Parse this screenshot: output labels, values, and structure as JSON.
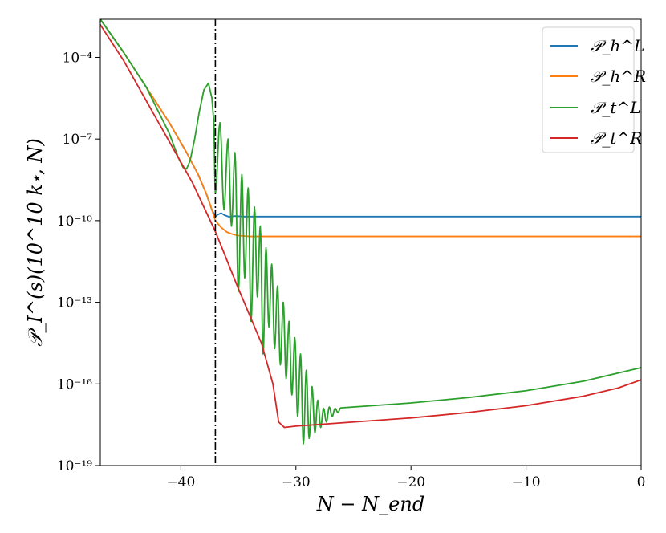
{
  "chart_data": {
    "type": "line",
    "xlabel": "N − N_end",
    "ylabel": "𝒫_I^(s)(10^10 k⋆, N)",
    "xlim": [
      -47,
      0
    ],
    "ylim_log10": [
      -19,
      -2.6
    ],
    "yscale": "log",
    "x_ticks": [
      -40,
      -30,
      -20,
      -10,
      0
    ],
    "x_tick_labels": [
      "−40",
      "−30",
      "−20",
      "−10",
      "0"
    ],
    "y_ticks_log10": [
      -4,
      -7,
      -10,
      -13,
      -16,
      -19
    ],
    "y_tick_labels": [
      "10⁻⁴",
      "10⁻⁷",
      "10⁻¹⁰",
      "10⁻¹³",
      "10⁻¹⁶",
      "10⁻¹⁹"
    ],
    "vline_x": -37,
    "legend_position": "top-right",
    "colors": {
      "PhL": "#1f77b4",
      "PhR": "#ff7f0e",
      "PtL": "#2ca02c",
      "PtR": "#d62728"
    },
    "series": [
      {
        "key": "PhL",
        "name": "𝒫_h^L",
        "x": [
          -47,
          -45,
          -43,
          -41,
          -39.5,
          -38.5,
          -37.8,
          -37.3,
          -37,
          -36.8,
          -36.5,
          -36.2,
          -35.8,
          -35.3,
          -34.5,
          -33,
          -30,
          -20,
          -10,
          0
        ],
        "log10y": [
          -2.6,
          -3.8,
          -5.1,
          -6.4,
          -7.5,
          -8.3,
          -9.0,
          -9.6,
          -9.85,
          -9.78,
          -9.72,
          -9.8,
          -9.86,
          -9.83,
          -9.85,
          -9.85,
          -9.85,
          -9.85,
          -9.85,
          -9.85
        ]
      },
      {
        "key": "PhR",
        "name": "𝒫_h^R",
        "x": [
          -47,
          -45,
          -43,
          -41,
          -39.5,
          -38.5,
          -37.8,
          -37.3,
          -37,
          -36.5,
          -36,
          -35.5,
          -35,
          -34,
          -32,
          -30,
          -20,
          -10,
          0
        ],
        "log10y": [
          -2.6,
          -3.8,
          -5.1,
          -6.4,
          -7.5,
          -8.3,
          -9.0,
          -9.6,
          -10.0,
          -10.25,
          -10.42,
          -10.5,
          -10.55,
          -10.58,
          -10.58,
          -10.58,
          -10.58,
          -10.58,
          -10.58
        ]
      },
      {
        "key": "PtL",
        "name": "𝒫_t^L",
        "x": [
          -47,
          -45,
          -43,
          -41,
          -40.2,
          -39.8,
          -39.5,
          -39.2,
          -38.8,
          -38.4,
          -38.0,
          -37.6,
          -37.3,
          -37.15
        ],
        "log10y": [
          -2.6,
          -3.8,
          -5.1,
          -6.8,
          -7.7,
          -8.05,
          -8.1,
          -7.8,
          -7.0,
          -6.0,
          -5.2,
          -4.95,
          -5.5,
          -6.3
        ],
        "oscillation": {
          "start_x": -37.15,
          "peaks": [
            [
              -36.6,
              -6.4
            ],
            [
              -35.9,
              -7.0
            ],
            [
              -35.3,
              -7.5
            ],
            [
              -34.7,
              -8.3
            ],
            [
              -34.15,
              -8.8
            ],
            [
              -33.6,
              -9.5
            ],
            [
              -33.1,
              -10.2
            ],
            [
              -32.6,
              -11.0
            ],
            [
              -32.1,
              -11.6
            ],
            [
              -31.6,
              -12.4
            ],
            [
              -31.1,
              -13.0
            ],
            [
              -30.6,
              -13.7
            ],
            [
              -30.1,
              -14.3
            ],
            [
              -29.6,
              -14.9
            ],
            [
              -29.1,
              -15.5
            ],
            [
              -28.6,
              -16.1
            ],
            [
              -28.1,
              -16.6
            ],
            [
              -27.6,
              -16.9
            ],
            [
              -27.1,
              -16.85
            ],
            [
              -26.6,
              -16.9
            ],
            [
              -26.1,
              -16.88
            ]
          ],
          "troughs": [
            [
              -37.0,
              -9.0
            ],
            [
              -36.25,
              -9.6
            ],
            [
              -35.6,
              -10.2
            ],
            [
              -35.0,
              -12.6
            ],
            [
              -34.45,
              -12.1
            ],
            [
              -33.9,
              -13.7
            ],
            [
              -33.35,
              -12.8
            ],
            [
              -32.85,
              -14.9
            ],
            [
              -32.35,
              -13.9
            ],
            [
              -31.85,
              -14.7
            ],
            [
              -31.35,
              -15.3
            ],
            [
              -30.85,
              -15.8
            ],
            [
              -30.35,
              -16.4
            ],
            [
              -29.85,
              -17.2
            ],
            [
              -29.35,
              -18.2
            ],
            [
              -28.85,
              -18.0
            ],
            [
              -28.35,
              -17.8
            ],
            [
              -27.85,
              -17.6
            ],
            [
              -27.35,
              -17.4
            ],
            [
              -26.85,
              -17.2
            ],
            [
              -26.35,
              -17.05
            ]
          ]
        },
        "tail_x": [
          -26.1,
          -20,
          -15,
          -10,
          -5,
          0
        ],
        "tail_log10y": [
          -16.88,
          -16.7,
          -16.5,
          -16.25,
          -15.9,
          -15.4
        ]
      },
      {
        "key": "PtR",
        "name": "𝒫_t^R",
        "x": [
          -47,
          -45,
          -43,
          -41,
          -39,
          -37,
          -35,
          -33,
          -32,
          -31.5,
          -31,
          -30,
          -25,
          -20,
          -15,
          -10,
          -5,
          -2,
          0
        ],
        "log10y": [
          -2.8,
          -4.1,
          -5.6,
          -7.1,
          -8.6,
          -10.4,
          -12.5,
          -14.5,
          -16.0,
          -17.4,
          -17.6,
          -17.55,
          -17.4,
          -17.25,
          -17.05,
          -16.8,
          -16.45,
          -16.15,
          -15.85
        ]
      }
    ]
  }
}
